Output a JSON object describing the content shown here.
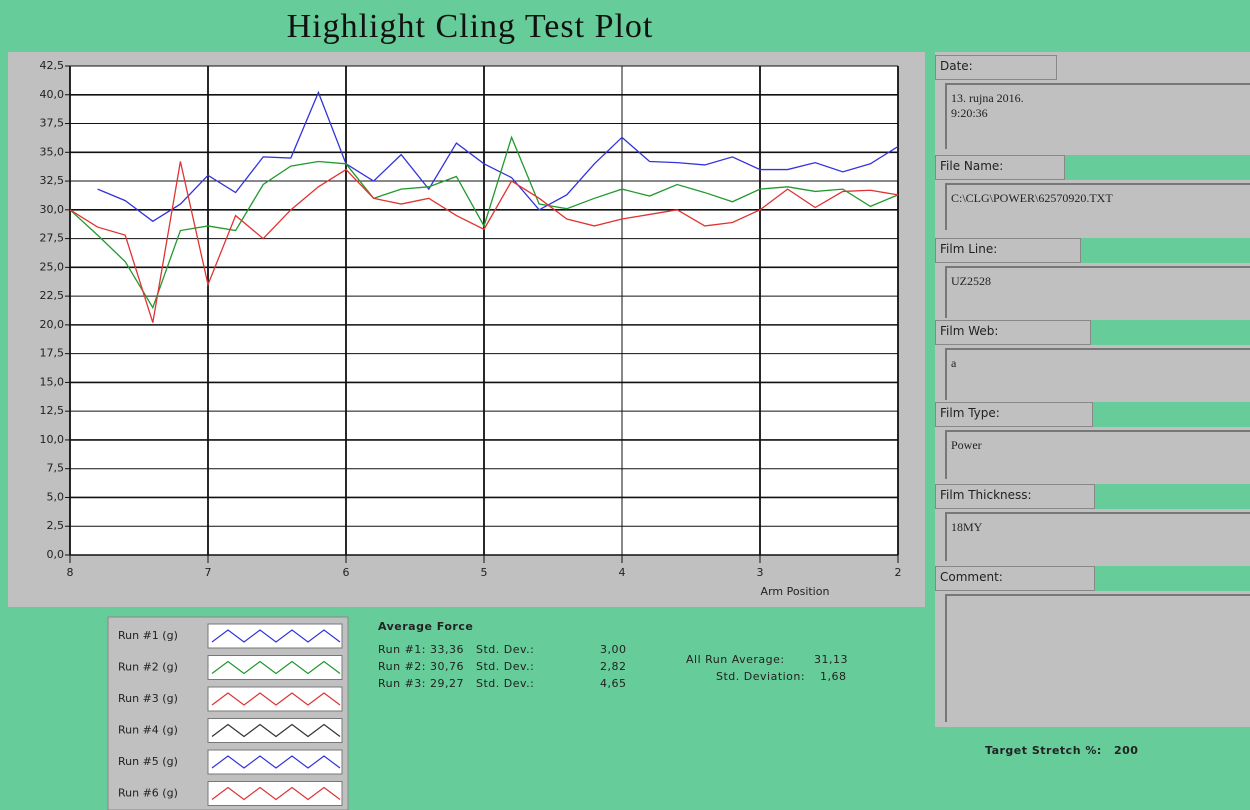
{
  "title": "Highlight Cling Test Plot",
  "chart_data": {
    "type": "line",
    "x_label": "Arm Position",
    "x": [
      8,
      7.8,
      7.6,
      7.4,
      7.2,
      7,
      6.8,
      6.6,
      6.4,
      6.2,
      6,
      5.8,
      5.6,
      5.4,
      5.2,
      5,
      4.8,
      4.6,
      4.4,
      4.2,
      4,
      3.8,
      3.6,
      3.4,
      3.2,
      3,
      2.8,
      2.6,
      2.4,
      2.2,
      2
    ],
    "xlim": [
      8,
      2
    ],
    "xticks": [
      8,
      7,
      6,
      5,
      4,
      3,
      2
    ],
    "ylim": [
      0,
      42.5
    ],
    "yticks": [
      {
        "value": 0,
        "label": "0,0"
      },
      {
        "value": 2.5,
        "label": "2,5"
      },
      {
        "value": 5,
        "label": "5,0"
      },
      {
        "value": 7.5,
        "label": "7,5"
      },
      {
        "value": 10,
        "label": "10,0"
      },
      {
        "value": 12.5,
        "label": "12,5"
      },
      {
        "value": 15,
        "label": "15,0"
      },
      {
        "value": 17.5,
        "label": "17,5"
      },
      {
        "value": 20,
        "label": "20,0"
      },
      {
        "value": 22.5,
        "label": "22,5"
      },
      {
        "value": 25,
        "label": "25,0"
      },
      {
        "value": 27.5,
        "label": "27,5"
      },
      {
        "value": 30,
        "label": "30,0"
      },
      {
        "value": 32.5,
        "label": "32,5"
      },
      {
        "value": 35,
        "label": "35,0"
      },
      {
        "value": 37.5,
        "label": "37,5"
      },
      {
        "value": 40,
        "label": "40,0"
      },
      {
        "value": 42.5,
        "label": "42,5"
      }
    ],
    "grid": true,
    "series": [
      {
        "name": "Run #1 (g)",
        "color": "#3333dd",
        "values": [
          null,
          31.8,
          30.8,
          29.0,
          30.5,
          33.0,
          31.5,
          34.6,
          34.5,
          40.2,
          34.0,
          32.5,
          34.8,
          31.8,
          35.8,
          34.0,
          32.8,
          30.0,
          31.3,
          34.0,
          36.3,
          34.2,
          34.1,
          33.9,
          34.6,
          33.5,
          33.5,
          34.1,
          33.3,
          34.0,
          35.5
        ]
      },
      {
        "name": "Run #2 (g)",
        "color": "#22992e",
        "values": [
          30.0,
          27.8,
          25.5,
          21.5,
          28.2,
          28.6,
          28.2,
          32.2,
          33.8,
          34.2,
          34.0,
          31.0,
          31.8,
          32.0,
          32.9,
          28.6,
          36.3,
          30.5,
          30.1,
          31.0,
          31.8,
          31.2,
          32.2,
          31.5,
          30.7,
          31.8,
          32.0,
          31.6,
          31.8,
          30.3,
          31.3
        ]
      },
      {
        "name": "Run #3 (g)",
        "color": "#e03333",
        "values": [
          30.0,
          28.5,
          27.8,
          20.2,
          34.2,
          23.5,
          29.5,
          27.5,
          30.0,
          32.0,
          33.5,
          31.0,
          30.5,
          31.0,
          29.5,
          28.3,
          32.5,
          31.0,
          29.2,
          28.6,
          29.2,
          29.6,
          30.0,
          28.6,
          28.9,
          30.0,
          31.8,
          30.2,
          31.6,
          31.7,
          31.3
        ]
      },
      {
        "name": "Run #4 (g)",
        "color": "#333333",
        "values": [
          null,
          null,
          null,
          null,
          null,
          null,
          null,
          null,
          null,
          null,
          null,
          null,
          null,
          null,
          null,
          null,
          null,
          null,
          null,
          null,
          null,
          null,
          null,
          null,
          null,
          null,
          null,
          null,
          null,
          null,
          null
        ]
      },
      {
        "name": "Run #5 (g)",
        "color": "#3333dd",
        "values": [
          null,
          null,
          null,
          null,
          null,
          null,
          null,
          null,
          null,
          null,
          null,
          null,
          null,
          null,
          null,
          null,
          null,
          null,
          null,
          null,
          null,
          null,
          null,
          null,
          null,
          null,
          null,
          null,
          null,
          null,
          null
        ]
      },
      {
        "name": "Run #6 (g)",
        "color": "#e03333",
        "values": [
          null,
          null,
          null,
          null,
          null,
          null,
          null,
          null,
          null,
          null,
          null,
          null,
          null,
          null,
          null,
          null,
          null,
          null,
          null,
          null,
          null,
          null,
          null,
          null,
          null,
          null,
          null,
          null,
          null,
          null,
          null
        ]
      }
    ]
  },
  "stats": {
    "heading": "Average Force",
    "rows": [
      {
        "run": "Run #1:",
        "average": "33,36",
        "std_label": "Std. Dev.:",
        "std": "3,00"
      },
      {
        "run": "Run #2:",
        "average": "30,76",
        "std_label": "Std. Dev.:",
        "std": "2,82"
      },
      {
        "run": "Run #3:",
        "average": "29,27",
        "std_label": "Std. Dev.:",
        "std": "4,65"
      }
    ],
    "all_average_label": "All Run Average:",
    "all_average": "31,13",
    "all_std_label": "Std. Deviation:",
    "all_std": "1,68",
    "target_label": "Target Stretch %:",
    "target": "200"
  },
  "fields": [
    {
      "label": "Date:",
      "value": "13. rujna 2016.\n9:20:36"
    },
    {
      "label": "File Name:",
      "value": "C:\\CLG\\POWER\\62570920.TXT"
    },
    {
      "label": "Film Line:",
      "value": "UZ2528"
    },
    {
      "label": "Film Web:",
      "value": "a"
    },
    {
      "label": "Film Type:",
      "value": "Power"
    },
    {
      "label": "Film Thickness:",
      "value": "18MY"
    },
    {
      "label": "Comment:"
    }
  ]
}
